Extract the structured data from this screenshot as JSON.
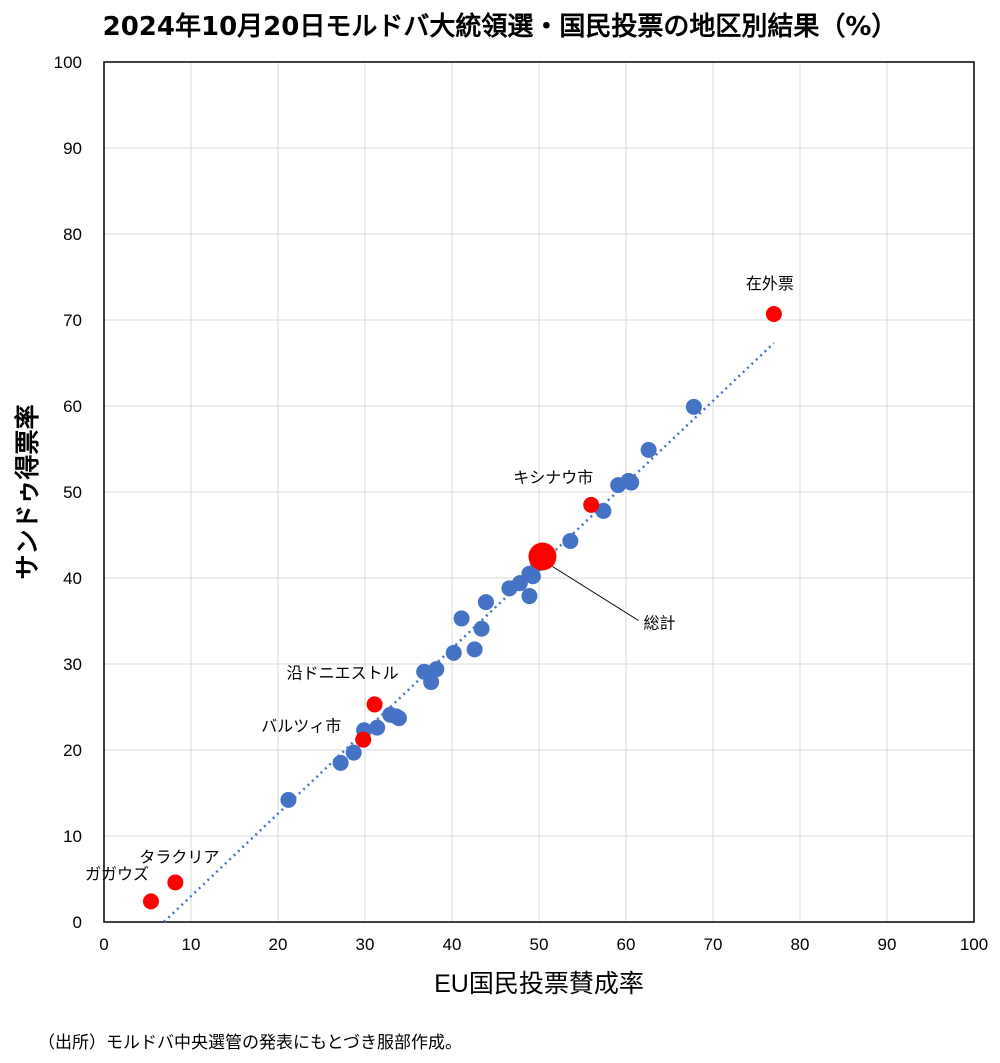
{
  "title": "2024年10月20日モルドバ大統領選・国民投票の地区別結果（%）",
  "footnote": "（出所）モルドバ中央選管の発表にもとづき服部作成。",
  "colors": {
    "district": "#4472C4",
    "highlight": "#FF0000",
    "trend": "#4472C4",
    "grid": "#D9D9D9"
  },
  "chart_data": {
    "type": "scatter",
    "title": "2024年10月20日モルドバ大統領選・国民投票の地区別結果（%）",
    "xlabel": "EU国民投票賛成率",
    "ylabel": "サンドゥ得票率",
    "xlim": [
      0,
      100
    ],
    "ylim": [
      0,
      100
    ],
    "xticks": [
      0,
      10,
      20,
      30,
      40,
      50,
      60,
      70,
      80,
      90,
      100
    ],
    "yticks": [
      0,
      10,
      20,
      30,
      40,
      50,
      60,
      70,
      80,
      90,
      100
    ],
    "grid": true,
    "series": [
      {
        "name": "",
        "color": "#4472C4",
        "points": [
          [
            21.2,
            14.2
          ],
          [
            27.2,
            18.5
          ],
          [
            28.7,
            19.7
          ],
          [
            29.9,
            22.3
          ],
          [
            31.4,
            22.6
          ],
          [
            32.9,
            24.1
          ],
          [
            33.6,
            23.9
          ],
          [
            33.9,
            23.7
          ],
          [
            36.8,
            29.1
          ],
          [
            37.6,
            27.9
          ],
          [
            38.2,
            29.4
          ],
          [
            40.2,
            31.3
          ],
          [
            41.1,
            35.3
          ],
          [
            42.6,
            31.7
          ],
          [
            43.4,
            34.1
          ],
          [
            43.9,
            37.2
          ],
          [
            46.6,
            38.8
          ],
          [
            47.8,
            39.4
          ],
          [
            48.9,
            40.5
          ],
          [
            48.9,
            37.9
          ],
          [
            49.3,
            40.2
          ],
          [
            49.9,
            41.7
          ],
          [
            50.1,
            43.1
          ],
          [
            53.6,
            44.3
          ],
          [
            57.4,
            47.8
          ],
          [
            59.1,
            50.8
          ],
          [
            60.3,
            51.3
          ],
          [
            60.6,
            51.1
          ],
          [
            62.6,
            54.9
          ],
          [
            67.8,
            59.9
          ]
        ]
      },
      {
        "name": "",
        "color": "#FF0000",
        "points": [
          {
            "x": 5.4,
            "y": 2.4,
            "label": "ガガウズ"
          },
          {
            "x": 8.2,
            "y": 4.6,
            "label": "タラクリア"
          },
          {
            "x": 29.8,
            "y": 21.2,
            "label": "バルツィ市"
          },
          {
            "x": 31.1,
            "y": 25.3,
            "label": "沿ドニエストル"
          },
          {
            "x": 56.0,
            "y": 48.5,
            "label": "キシナウ市"
          },
          {
            "x": 77.0,
            "y": 70.7,
            "label": "在外票"
          },
          {
            "x": 50.4,
            "y": 42.5,
            "label": "総計",
            "large": true
          }
        ]
      }
    ],
    "trendline": {
      "x0": 6.9,
      "x1": 77.0,
      "slope": 0.96,
      "intercept": -6.6
    }
  }
}
